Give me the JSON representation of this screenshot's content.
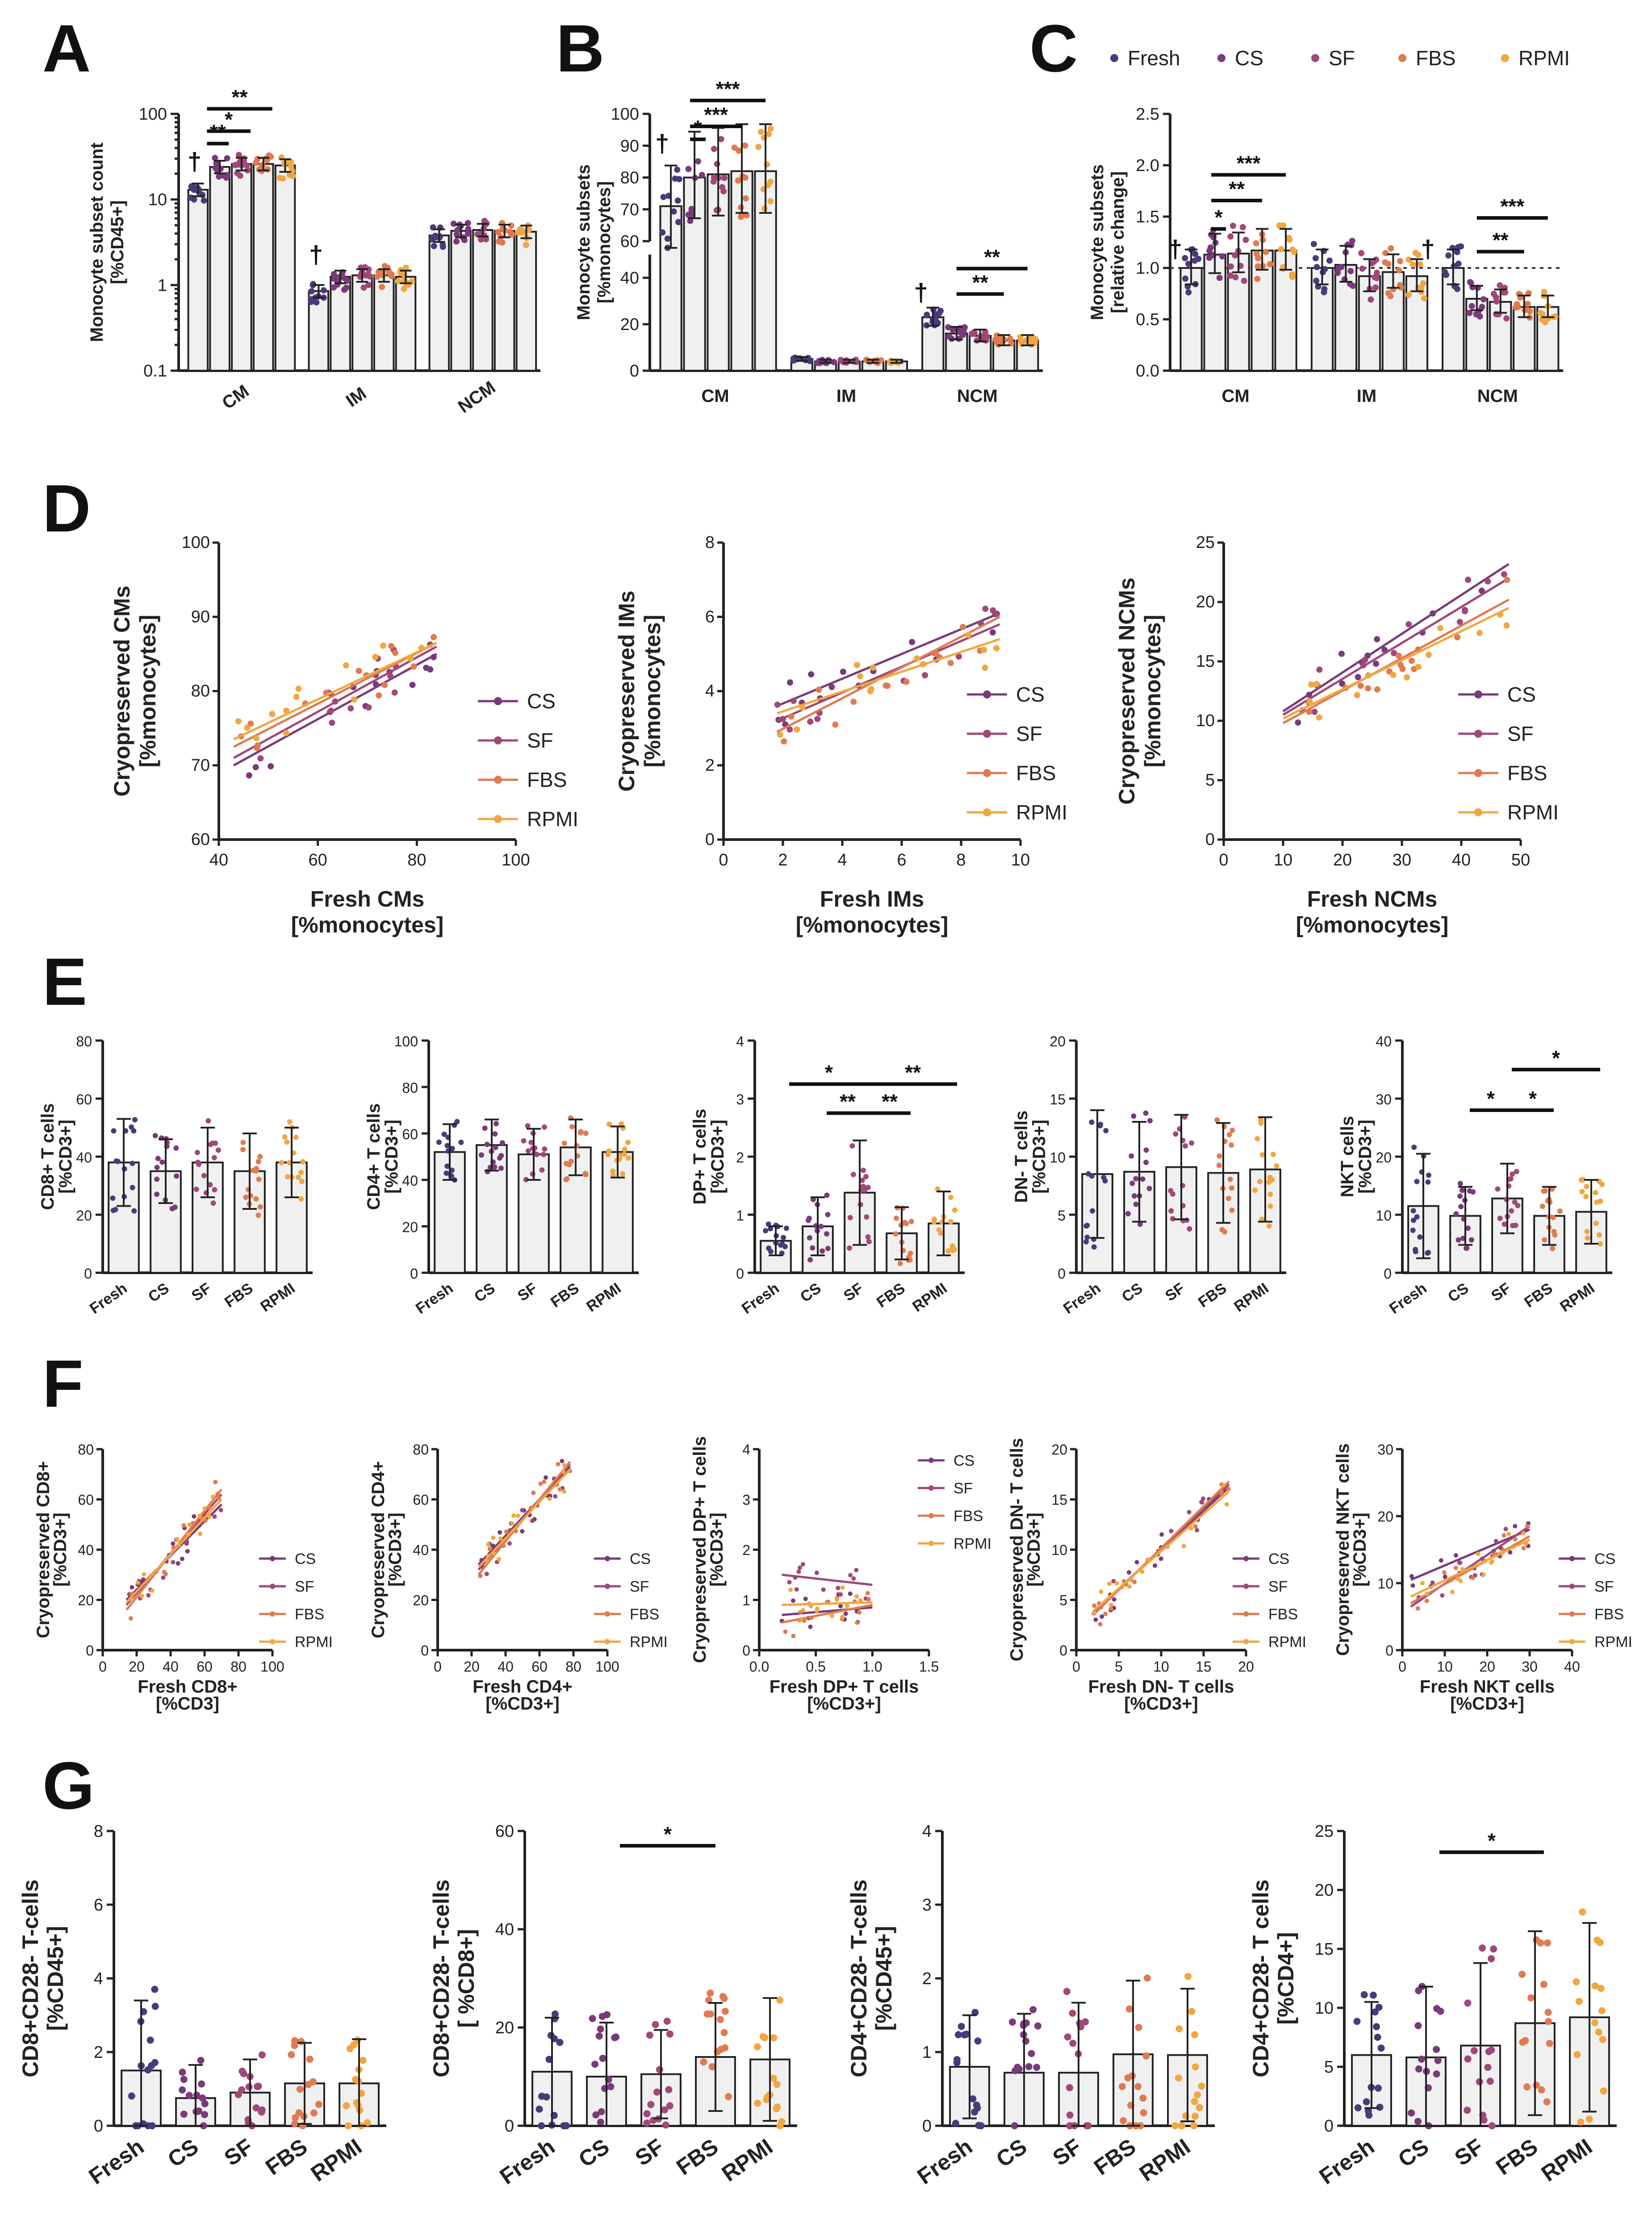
{
  "figure": {
    "panel_letters": [
      "A",
      "B",
      "C",
      "D",
      "E",
      "F",
      "G"
    ],
    "colors": {
      "Fresh": "#4b3a7a",
      "CS": "#7a3a7a",
      "SF": "#a0487a",
      "FBS": "#e07a50",
      "RPMI": "#f2a640"
    }
  },
  "chart_data": [
    {
      "id": "A",
      "type": "bar",
      "title": "",
      "ylabel": "Monocyte subset count\n[%CD45+]",
      "yscale": "log",
      "ylim": [
        0.1,
        100
      ],
      "yticks": [
        "0.1",
        "1",
        "10",
        "100"
      ],
      "categories": [
        "CM",
        "IM",
        "NCM"
      ],
      "series": [
        {
          "name": "Fresh",
          "values": [
            13,
            0.85,
            3.8
          ]
        },
        {
          "name": "CS",
          "values": [
            24,
            1.25,
            4.3
          ]
        },
        {
          "name": "SF",
          "values": [
            26,
            1.3,
            4.4
          ]
        },
        {
          "name": "FBS",
          "values": [
            26,
            1.3,
            4.3
          ]
        },
        {
          "name": "RPMI",
          "values": [
            25,
            1.25,
            4.2
          ]
        }
      ],
      "annotations": [
        "†",
        "†",
        "**",
        "*",
        "**"
      ]
    },
    {
      "id": "B",
      "type": "bar",
      "title": "",
      "ylabel": "Monocyte subsets\n[%monocytes]",
      "ylim": [
        0,
        100
      ],
      "axis_break": [
        50,
        60
      ],
      "yticks_lower": [
        "0",
        "20",
        "40"
      ],
      "yticks_upper": [
        "60",
        "70",
        "80",
        "90",
        "100"
      ],
      "categories": [
        "CM",
        "IM",
        "NCM"
      ],
      "series": [
        {
          "name": "Fresh",
          "values": [
            71,
            5,
            23
          ]
        },
        {
          "name": "CS",
          "values": [
            80,
            4,
            16
          ]
        },
        {
          "name": "SF",
          "values": [
            81,
            4,
            15
          ]
        },
        {
          "name": "FBS",
          "values": [
            82,
            4,
            13
          ]
        },
        {
          "name": "RPMI",
          "values": [
            82,
            4,
            13
          ]
        }
      ],
      "annotations": [
        "†",
        "†",
        "*",
        "***",
        "***",
        "**",
        "**"
      ]
    },
    {
      "id": "C",
      "type": "bar",
      "title": "",
      "ylabel": "Monocyte subsets\n[relative change]",
      "ylim": [
        0,
        2.5
      ],
      "yticks": [
        "0.0",
        "0.5",
        "1.0",
        "1.5",
        "2.0",
        "2.5"
      ],
      "categories": [
        "CM",
        "IM",
        "NCM"
      ],
      "reference_line": 1.0,
      "series": [
        {
          "name": "Fresh",
          "values": [
            1.0,
            1.0,
            1.0
          ]
        },
        {
          "name": "CS",
          "values": [
            1.13,
            1.03,
            0.7
          ]
        },
        {
          "name": "SF",
          "values": [
            1.14,
            0.92,
            0.67
          ]
        },
        {
          "name": "FBS",
          "values": [
            1.17,
            0.96,
            0.62
          ]
        },
        {
          "name": "RPMI",
          "values": [
            1.17,
            0.92,
            0.62
          ]
        }
      ],
      "legend": [
        "Fresh",
        "CS",
        "SF",
        "FBS",
        "RPMI"
      ],
      "annotations": [
        "†",
        "†",
        "*",
        "**",
        "***",
        "**",
        "***"
      ]
    },
    {
      "id": "D1",
      "type": "scatter",
      "xlabel": "Fresh CMs\n[%monocytes]",
      "ylabel": "Cryopreserved CMs\n[%monocytes]",
      "xlim": [
        40,
        100
      ],
      "ylim": [
        60,
        100
      ],
      "xticks": [
        "40",
        "60",
        "80",
        "100"
      ],
      "yticks": [
        "60",
        "70",
        "80",
        "90",
        "100"
      ],
      "series": [
        {
          "name": "CS",
          "line": [
            [
              43,
              70
            ],
            [
              84,
              85
            ]
          ]
        },
        {
          "name": "SF",
          "line": [
            [
              43,
              71
            ],
            [
              84,
              86
            ]
          ]
        },
        {
          "name": "FBS",
          "line": [
            [
              43,
              72.5
            ],
            [
              84,
              86.5
            ]
          ]
        },
        {
          "name": "RPMI",
          "line": [
            [
              43,
              73.5
            ],
            [
              84,
              86.5
            ]
          ]
        }
      ]
    },
    {
      "id": "D2",
      "type": "scatter",
      "xlabel": "Fresh IMs\n[%monocytes]",
      "ylabel": "Cryopreserved IMs\n[%monocytes]",
      "xlim": [
        0,
        10
      ],
      "ylim": [
        0,
        8
      ],
      "xticks": [
        "0",
        "2",
        "4",
        "6",
        "8",
        "10"
      ],
      "yticks": [
        "0",
        "2",
        "4",
        "6",
        "8"
      ],
      "series": [
        {
          "name": "CS",
          "line": [
            [
              1.8,
              3.6
            ],
            [
              9.3,
              6.1
            ]
          ]
        },
        {
          "name": "SF",
          "line": [
            [
              1.8,
              3.2
            ],
            [
              9.3,
              5.8
            ]
          ]
        },
        {
          "name": "FBS",
          "line": [
            [
              1.8,
              2.9
            ],
            [
              9.3,
              6.0
            ]
          ]
        },
        {
          "name": "RPMI",
          "line": [
            [
              1.8,
              3.4
            ],
            [
              9.3,
              5.4
            ]
          ]
        }
      ]
    },
    {
      "id": "D3",
      "type": "scatter",
      "xlabel": "Fresh NCMs\n[%monocytes]",
      "ylabel": "Cryopreserved NCMs\n[%monocytes]",
      "xlim": [
        0,
        50
      ],
      "ylim": [
        0,
        25
      ],
      "xticks": [
        "0",
        "10",
        "20",
        "30",
        "40",
        "50"
      ],
      "yticks": [
        "0",
        "5",
        "10",
        "15",
        "20",
        "25"
      ],
      "series": [
        {
          "name": "CS",
          "line": [
            [
              10,
              10.8
            ],
            [
              48,
              23.2
            ]
          ]
        },
        {
          "name": "SF",
          "line": [
            [
              10,
              10.5
            ],
            [
              48,
              22
            ]
          ]
        },
        {
          "name": "FBS",
          "line": [
            [
              10,
              9.8
            ],
            [
              48,
              20.2
            ]
          ]
        },
        {
          "name": "RPMI",
          "line": [
            [
              10,
              10.2
            ],
            [
              48,
              19.5
            ]
          ]
        }
      ]
    },
    {
      "id": "E1",
      "type": "bar",
      "ylabel": "CD8+ T cells\n[%CD3+]",
      "ylim": [
        0,
        80
      ],
      "yticks": [
        "0",
        "20",
        "40",
        "60",
        "80"
      ],
      "categories": [
        "Fresh",
        "CS",
        "SF",
        "FBS",
        "RPMI"
      ],
      "values": [
        38,
        35,
        38,
        35,
        38
      ],
      "errors": [
        15,
        11,
        12,
        13,
        12
      ]
    },
    {
      "id": "E2",
      "type": "bar",
      "ylabel": "CD4+ T cells\n[%CD3+]",
      "ylim": [
        0,
        100
      ],
      "yticks": [
        "0",
        "20",
        "40",
        "60",
        "80",
        "100"
      ],
      "categories": [
        "Fresh",
        "CS",
        "SF",
        "FBS",
        "RPMI"
      ],
      "values": [
        52,
        55,
        51,
        54,
        52
      ],
      "errors": [
        12,
        11,
        11,
        12,
        11
      ]
    },
    {
      "id": "E3",
      "type": "bar",
      "ylabel": "DP+ T cells\n[%CD3+]",
      "ylim": [
        0,
        4
      ],
      "yticks": [
        "0",
        "1",
        "2",
        "3",
        "4"
      ],
      "categories": [
        "Fresh",
        "CS",
        "SF",
        "FBS",
        "RPMI"
      ],
      "values": [
        0.55,
        0.8,
        1.38,
        0.68,
        0.85
      ],
      "errors": [
        0.25,
        0.5,
        0.9,
        0.45,
        0.55
      ],
      "annotations": [
        "*",
        "**",
        "**",
        "**"
      ]
    },
    {
      "id": "E4",
      "type": "bar",
      "ylabel": "DN- T cells\n[%CD3+]",
      "ylim": [
        0,
        20
      ],
      "yticks": [
        "0",
        "5",
        "10",
        "15",
        "20"
      ],
      "categories": [
        "Fresh",
        "CS",
        "SF",
        "FBS",
        "RPMI"
      ],
      "values": [
        8.5,
        8.7,
        9.1,
        8.6,
        8.9
      ],
      "errors": [
        5.5,
        4.3,
        4.5,
        4.3,
        4.5
      ]
    },
    {
      "id": "E5",
      "type": "bar",
      "ylabel": "NKT cells\n[%CD3+]",
      "ylim": [
        0,
        40
      ],
      "yticks": [
        "0",
        "10",
        "20",
        "30",
        "40"
      ],
      "categories": [
        "Fresh",
        "CS",
        "SF",
        "FBS",
        "RPMI"
      ],
      "values": [
        11.5,
        9.8,
        12.8,
        9.8,
        10.5
      ],
      "errors": [
        9,
        5,
        6,
        5,
        5.5
      ],
      "annotations": [
        "*",
        "*",
        "*"
      ]
    },
    {
      "id": "F1",
      "type": "scatter",
      "xlabel": "Fresh CD8+\n[%CD3]",
      "ylabel": "Cryopreserved CD8+\n[%CD3+]",
      "xlim": [
        0,
        100
      ],
      "ylim": [
        0,
        80
      ],
      "xticks": [
        "0",
        "20",
        "40",
        "60",
        "80",
        "100"
      ],
      "yticks": [
        "0",
        "20",
        "40",
        "60",
        "80"
      ],
      "series": [
        {
          "name": "CS",
          "line": [
            [
              14,
              20
            ],
            [
              70,
              58
            ]
          ]
        },
        {
          "name": "SF",
          "line": [
            [
              14,
              18
            ],
            [
              70,
              62
            ]
          ]
        },
        {
          "name": "FBS",
          "line": [
            [
              14,
              16
            ],
            [
              70,
              64
            ]
          ]
        },
        {
          "name": "RPMI",
          "line": [
            [
              14,
              19
            ],
            [
              70,
              60
            ]
          ]
        }
      ]
    },
    {
      "id": "F2",
      "type": "scatter",
      "xlabel": "Fresh CD4+\n[%CD3+]",
      "ylabel": "Cryopreserved CD4+\n[%CD3+]",
      "xlim": [
        0,
        100
      ],
      "ylim": [
        0,
        80
      ],
      "xticks": [
        "0",
        "20",
        "40",
        "60",
        "80",
        "100"
      ],
      "yticks": [
        "0",
        "20",
        "40",
        "60",
        "80"
      ],
      "series": [
        {
          "name": "CS",
          "line": [
            [
              24,
              34
            ],
            [
              78,
              73
            ]
          ]
        },
        {
          "name": "SF",
          "line": [
            [
              24,
              32
            ],
            [
              78,
              74
            ]
          ]
        },
        {
          "name": "FBS",
          "line": [
            [
              24,
              30
            ],
            [
              78,
              75
            ]
          ]
        },
        {
          "name": "RPMI",
          "line": [
            [
              24,
              33
            ],
            [
              78,
              72
            ]
          ]
        }
      ]
    },
    {
      "id": "F3",
      "type": "scatter",
      "xlabel": "Fresh DP+ T cells\n[%CD3+]",
      "ylabel": "Cryopreserved DP+ T cells\n[%CD3+]",
      "xlim": [
        0,
        1.5
      ],
      "ylim": [
        0,
        4
      ],
      "xticks": [
        "0.0",
        "0.5",
        "1.0",
        "1.5"
      ],
      "yticks": [
        "0",
        "1",
        "2",
        "3",
        "4"
      ],
      "series": [
        {
          "name": "CS",
          "line": [
            [
              0.2,
              0.7
            ],
            [
              1.0,
              0.85
            ]
          ]
        },
        {
          "name": "SF",
          "line": [
            [
              0.2,
              1.5
            ],
            [
              1.0,
              1.3
            ]
          ]
        },
        {
          "name": "FBS",
          "line": [
            [
              0.2,
              0.55
            ],
            [
              1.0,
              0.9
            ]
          ]
        },
        {
          "name": "RPMI",
          "line": [
            [
              0.2,
              0.9
            ],
            [
              1.0,
              0.95
            ]
          ]
        }
      ]
    },
    {
      "id": "F4",
      "type": "scatter",
      "xlabel": "Fresh DN- T cells\n[%CD3+]",
      "ylabel": "Cryopreserved DN- T cells\n[%CD3+]",
      "xlim": [
        0,
        20
      ],
      "ylim": [
        0,
        20
      ],
      "xticks": [
        "0",
        "5",
        "10",
        "15",
        "20"
      ],
      "yticks": [
        "0",
        "5",
        "10",
        "15",
        "20"
      ],
      "series": [
        {
          "name": "CS",
          "line": [
            [
              2,
              3.8
            ],
            [
              18,
              16.2
            ]
          ]
        },
        {
          "name": "SF",
          "line": [
            [
              2,
              3.6
            ],
            [
              18,
              16.5
            ]
          ]
        },
        {
          "name": "FBS",
          "line": [
            [
              2,
              3.5
            ],
            [
              18,
              16.8
            ]
          ]
        },
        {
          "name": "RPMI",
          "line": [
            [
              2,
              3.9
            ],
            [
              18,
              15.8
            ]
          ]
        }
      ]
    },
    {
      "id": "F5",
      "type": "scatter",
      "xlabel": "Fresh NKT cells\n[%CD3+]",
      "ylabel": "Cryopreserved NKT cells\n[%CD3+]",
      "xlim": [
        0,
        40
      ],
      "ylim": [
        0,
        30
      ],
      "xticks": [
        "0",
        "10",
        "20",
        "30",
        "40"
      ],
      "yticks": [
        "0",
        "10",
        "20",
        "30"
      ],
      "series": [
        {
          "name": "CS",
          "line": [
            [
              2,
              10.5
            ],
            [
              30,
              18
            ]
          ]
        },
        {
          "name": "SF",
          "line": [
            [
              2,
              6.5
            ],
            [
              30,
              18.5
            ]
          ]
        },
        {
          "name": "FBS",
          "line": [
            [
              2,
              7
            ],
            [
              30,
              17
            ]
          ]
        },
        {
          "name": "RPMI",
          "line": [
            [
              2,
              8
            ],
            [
              30,
              16.5
            ]
          ]
        }
      ]
    },
    {
      "id": "G1",
      "type": "bar",
      "ylabel": "CD8+CD28- T-cells\n[%CD45+]",
      "ylim": [
        0,
        8
      ],
      "yticks": [
        "0",
        "2",
        "4",
        "6",
        "8"
      ],
      "categories": [
        "Fresh",
        "CS",
        "SF",
        "FBS",
        "RPMI"
      ],
      "values": [
        1.5,
        0.75,
        0.9,
        1.15,
        1.15
      ],
      "errors": [
        1.9,
        0.9,
        0.9,
        1.1,
        1.2
      ]
    },
    {
      "id": "G2",
      "type": "bar",
      "ylabel": "CD8+CD28- T-cells\n[ %CD8+]",
      "ylim": [
        0,
        60
      ],
      "yticks": [
        "0",
        "20",
        "40",
        "60"
      ],
      "categories": [
        "Fresh",
        "CS",
        "SF",
        "FBS",
        "RPMI"
      ],
      "values": [
        11,
        10,
        10.5,
        14,
        13.5
      ],
      "errors": [
        11,
        11,
        9,
        11,
        12.5
      ],
      "annotations": [
        "*"
      ]
    },
    {
      "id": "G3",
      "type": "bar",
      "ylabel": "CD4+CD28- T-cells\n[%CD45+]",
      "ylim": [
        0,
        4
      ],
      "yticks": [
        "0",
        "1",
        "2",
        "3",
        "4"
      ],
      "categories": [
        "Fresh",
        "CS",
        "SF",
        "FBS",
        "RPMI"
      ],
      "values": [
        0.8,
        0.72,
        0.72,
        0.97,
        0.96
      ],
      "errors": [
        0.7,
        0.8,
        0.95,
        1.0,
        0.9
      ]
    },
    {
      "id": "G4",
      "type": "bar",
      "ylabel": "CD4+CD28- T cells\n[%CD4+]",
      "ylim": [
        0,
        25
      ],
      "yticks": [
        "0",
        "5",
        "10",
        "15",
        "20",
        "25"
      ],
      "categories": [
        "Fresh",
        "CS",
        "SF",
        "FBS",
        "RPMI"
      ],
      "values": [
        6,
        5.8,
        6.8,
        8.7,
        9.2
      ],
      "errors": [
        4.5,
        6,
        7,
        7.8,
        8
      ],
      "annotations": [
        "*"
      ]
    }
  ]
}
